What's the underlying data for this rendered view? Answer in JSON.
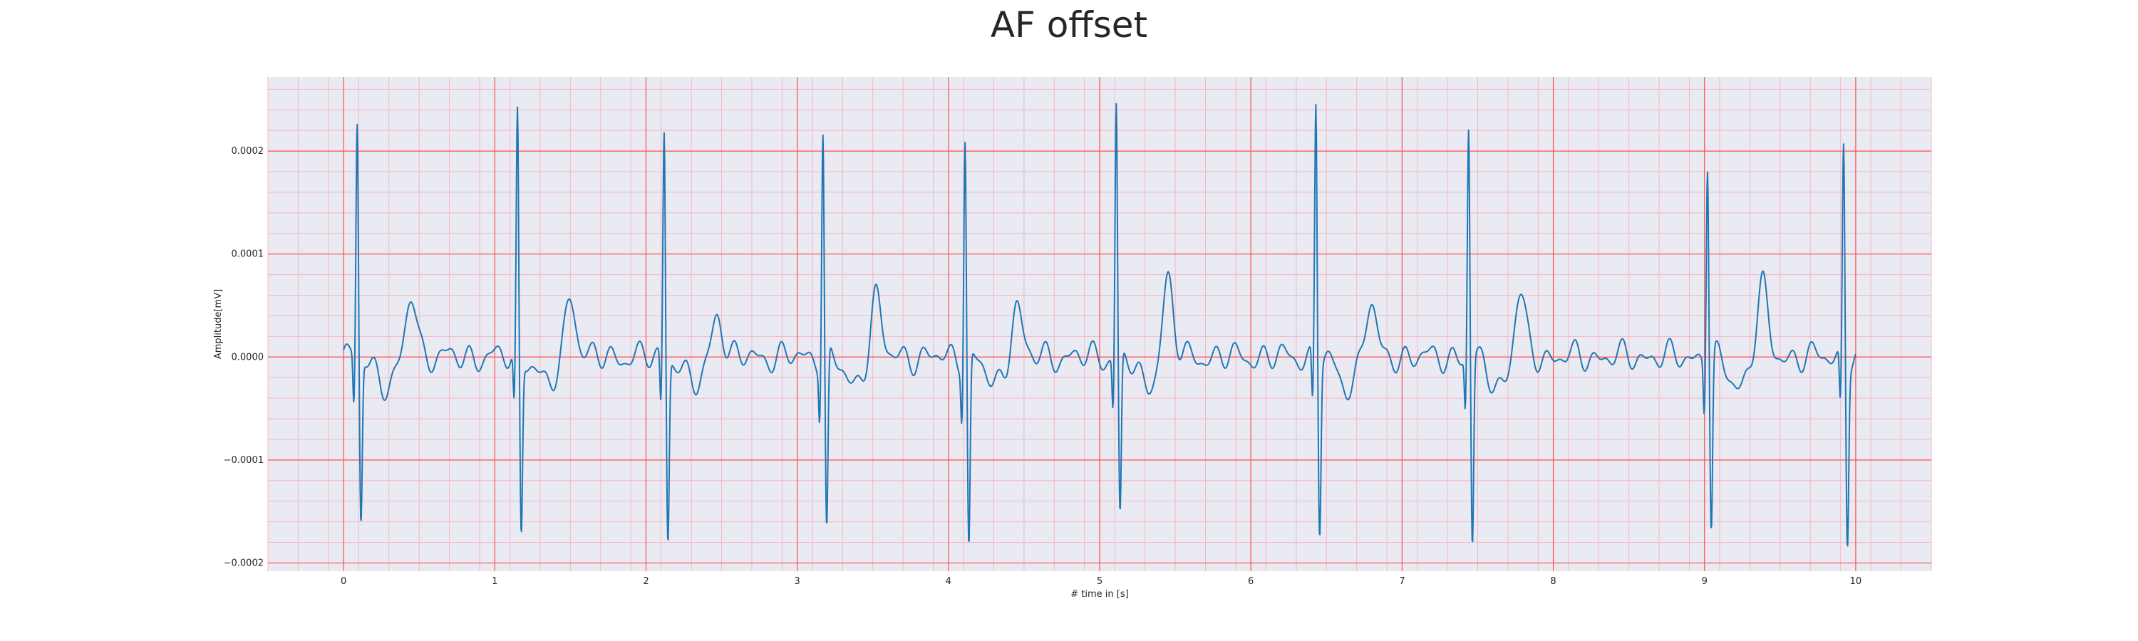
{
  "chart_data": {
    "type": "line",
    "title": "AF offset",
    "xlabel": "# time in [s]",
    "ylabel": "Amplitude[mV]",
    "xlim": [
      -0.5,
      10.5
    ],
    "ylim": [
      -0.000208,
      0.000272
    ],
    "x_ticks": [
      0,
      1,
      2,
      3,
      4,
      5,
      6,
      7,
      8,
      9,
      10
    ],
    "x_tick_labels": [
      "0",
      "1",
      "2",
      "3",
      "4",
      "5",
      "6",
      "7",
      "8",
      "9",
      "10"
    ],
    "y_ticks": [
      -0.0002,
      -0.0001,
      0.0,
      0.0001,
      0.0002
    ],
    "y_tick_labels": [
      "−0.0002",
      "−0.0001",
      "0.0000",
      "0.0001",
      "0.0002"
    ],
    "grid": true,
    "major_grid_color": "#ff4d4d",
    "minor_grid_color": "#f4b6c4",
    "background_color": "#eaeaf2",
    "line_color": "#1f77b4",
    "beats": [
      {
        "t": 0.09,
        "peak": 0.000226,
        "trough": -0.00016
      },
      {
        "t": 1.15,
        "peak": 0.000235,
        "trough": -0.00017
      },
      {
        "t": 2.12,
        "peak": 0.000222,
        "trough": -0.000176
      },
      {
        "t": 3.17,
        "peak": 0.000224,
        "trough": -0.000175
      },
      {
        "t": 4.11,
        "peak": 0.000218,
        "trough": -0.000188
      },
      {
        "t": 5.11,
        "peak": 0.000248,
        "trough": -0.000157
      },
      {
        "t": 6.43,
        "peak": 0.00025,
        "trough": -0.000165
      },
      {
        "t": 7.44,
        "peak": 0.000222,
        "trough": -0.000185
      },
      {
        "t": 9.02,
        "peak": 0.000194,
        "trough": -0.000168
      },
      {
        "t": 9.92,
        "peak": 0.00021,
        "trough": -0.000172
      }
    ],
    "t_waves": [
      {
        "t": 0.45,
        "amp": 6.2e-05
      },
      {
        "t": 1.5,
        "amp": 6.3e-05
      },
      {
        "t": 2.47,
        "amp": 4.5e-05
      },
      {
        "t": 3.52,
        "amp": 6e-05
      },
      {
        "t": 4.45,
        "amp": 5.3e-05
      },
      {
        "t": 5.45,
        "amp": 7.6e-05
      },
      {
        "t": 6.79,
        "amp": 5.3e-05
      },
      {
        "t": 7.78,
        "amp": 6.2e-05
      },
      {
        "t": 9.38,
        "amp": 7e-05
      }
    ],
    "x_range": [
      0,
      10
    ],
    "sample_rate_hz": 300
  }
}
